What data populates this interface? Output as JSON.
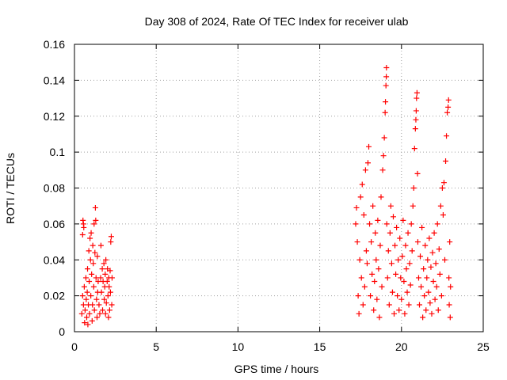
{
  "chart_data": {
    "type": "scatter",
    "title": "Day 308 of 2024, Rate Of TEC Index for receiver ulab",
    "xlabel": "GPS time / hours",
    "ylabel": "ROTI / TECUs",
    "xlim": [
      0,
      25
    ],
    "ylim": [
      0,
      0.16
    ],
    "x_ticks": [
      "0",
      "5",
      "10",
      "15",
      "20",
      "25"
    ],
    "y_ticks": [
      "0",
      "0.02",
      "0.04",
      "0.06",
      "0.08",
      "0.1",
      "0.12",
      "0.14",
      "0.16"
    ],
    "x_tick_values": [
      0,
      5,
      10,
      15,
      20,
      25
    ],
    "y_tick_values": [
      0,
      0.02,
      0.04,
      0.06,
      0.08,
      0.1,
      0.12,
      0.14,
      0.16
    ],
    "grid": true,
    "marker": "plus",
    "color": "#ff0000",
    "series": [
      {
        "points": [
          [
            0.45,
            0.01
          ],
          [
            0.5,
            0.054
          ],
          [
            0.52,
            0.062
          ],
          [
            0.55,
            0.06
          ],
          [
            0.57,
            0.058
          ],
          [
            0.5,
            0.02
          ],
          [
            0.55,
            0.015
          ],
          [
            0.6,
            0.025
          ],
          [
            0.62,
            0.005
          ],
          [
            0.65,
            0.012
          ],
          [
            0.7,
            0.03
          ],
          [
            0.72,
            0.018
          ],
          [
            0.75,
            0.008
          ],
          [
            0.78,
            0.022
          ],
          [
            0.8,
            0.035
          ],
          [
            0.82,
            0.004
          ],
          [
            0.85,
            0.015
          ],
          [
            0.88,
            0.045
          ],
          [
            0.9,
            0.028
          ],
          [
            0.92,
            0.01
          ],
          [
            0.95,
            0.052
          ],
          [
            0.98,
            0.04
          ],
          [
            1.0,
            0.02
          ],
          [
            1.02,
            0.055
          ],
          [
            1.05,
            0.032
          ],
          [
            1.08,
            0.006
          ],
          [
            1.1,
            0.015
          ],
          [
            1.12,
            0.048
          ],
          [
            1.15,
            0.038
          ],
          [
            1.18,
            0.025
          ],
          [
            1.2,
            0.06
          ],
          [
            1.22,
            0.012
          ],
          [
            1.25,
            0.044
          ],
          [
            1.28,
            0.069
          ],
          [
            1.3,
            0.062
          ],
          [
            1.32,
            0.03
          ],
          [
            1.35,
            0.018
          ],
          [
            1.38,
            0.008
          ],
          [
            1.4,
            0.042
          ],
          [
            1.42,
            0.022
          ],
          [
            1.45,
            0.028
          ],
          [
            1.5,
            0.015
          ],
          [
            1.55,
            0.01
          ],
          [
            1.6,
            0.03
          ],
          [
            1.62,
            0.048
          ],
          [
            1.65,
            0.022
          ],
          [
            1.7,
            0.035
          ],
          [
            1.72,
            0.012
          ],
          [
            1.75,
            0.028
          ],
          [
            1.8,
            0.038
          ],
          [
            1.82,
            0.018
          ],
          [
            1.85,
            0.025
          ],
          [
            1.88,
            0.032
          ],
          [
            1.9,
            0.01
          ],
          [
            1.92,
            0.04
          ],
          [
            1.95,
            0.016
          ],
          [
            2.0,
            0.028
          ],
          [
            2.02,
            0.035
          ],
          [
            2.05,
            0.02
          ],
          [
            2.08,
            0.008
          ],
          [
            2.1,
            0.03
          ],
          [
            2.12,
            0.025
          ],
          [
            2.15,
            0.012
          ],
          [
            2.18,
            0.034
          ],
          [
            2.2,
            0.022
          ],
          [
            2.22,
            0.05
          ],
          [
            2.25,
            0.053
          ],
          [
            2.28,
            0.015
          ],
          [
            2.3,
            0.03
          ],
          [
            17.2,
            0.06
          ],
          [
            17.25,
            0.069
          ],
          [
            17.3,
            0.05
          ],
          [
            17.35,
            0.02
          ],
          [
            17.4,
            0.01
          ],
          [
            17.45,
            0.04
          ],
          [
            17.5,
            0.075
          ],
          [
            17.55,
            0.03
          ],
          [
            17.6,
            0.082
          ],
          [
            17.65,
            0.015
          ],
          [
            17.7,
            0.065
          ],
          [
            17.75,
            0.025
          ],
          [
            17.8,
            0.09
          ],
          [
            17.85,
            0.045
          ],
          [
            17.9,
            0.038
          ],
          [
            17.95,
            0.094
          ],
          [
            18.0,
            0.103
          ],
          [
            18.05,
            0.06
          ],
          [
            18.1,
            0.02
          ],
          [
            18.15,
            0.05
          ],
          [
            18.2,
            0.032
          ],
          [
            18.25,
            0.07
          ],
          [
            18.3,
            0.012
          ],
          [
            18.35,
            0.028
          ],
          [
            18.4,
            0.055
          ],
          [
            18.45,
            0.04
          ],
          [
            18.5,
            0.018
          ],
          [
            18.55,
            0.062
          ],
          [
            18.6,
            0.035
          ],
          [
            18.65,
            0.008
          ],
          [
            18.7,
            0.048
          ],
          [
            18.75,
            0.075
          ],
          [
            18.8,
            0.025
          ],
          [
            18.85,
            0.09
          ],
          [
            18.9,
            0.098
          ],
          [
            18.95,
            0.108
          ],
          [
            19.0,
            0.122
          ],
          [
            19.02,
            0.128
          ],
          [
            19.05,
            0.137
          ],
          [
            19.07,
            0.142
          ],
          [
            19.08,
            0.147
          ],
          [
            19.1,
            0.06
          ],
          [
            19.15,
            0.03
          ],
          [
            19.2,
            0.045
          ],
          [
            19.25,
            0.015
          ],
          [
            19.3,
            0.055
          ],
          [
            19.35,
            0.07
          ],
          [
            19.4,
            0.038
          ],
          [
            19.45,
            0.022
          ],
          [
            19.5,
            0.064
          ],
          [
            19.55,
            0.01
          ],
          [
            19.6,
            0.048
          ],
          [
            19.65,
            0.032
          ],
          [
            19.7,
            0.058
          ],
          [
            19.75,
            0.02
          ],
          [
            19.8,
            0.04
          ],
          [
            19.85,
            0.012
          ],
          [
            19.9,
            0.052
          ],
          [
            19.95,
            0.03
          ],
          [
            20.0,
            0.018
          ],
          [
            20.05,
            0.042
          ],
          [
            20.1,
            0.062
          ],
          [
            20.15,
            0.028
          ],
          [
            20.2,
            0.01
          ],
          [
            20.25,
            0.048
          ],
          [
            20.3,
            0.035
          ],
          [
            20.35,
            0.022
          ],
          [
            20.4,
            0.055
          ],
          [
            20.45,
            0.015
          ],
          [
            20.5,
            0.038
          ],
          [
            20.55,
            0.026
          ],
          [
            20.6,
            0.06
          ],
          [
            20.65,
            0.045
          ],
          [
            20.7,
            0.07
          ],
          [
            20.75,
            0.08
          ],
          [
            20.8,
            0.102
          ],
          [
            20.85,
            0.113
          ],
          [
            20.88,
            0.118
          ],
          [
            20.9,
            0.123
          ],
          [
            20.92,
            0.13
          ],
          [
            20.95,
            0.133
          ],
          [
            20.98,
            0.088
          ],
          [
            21.0,
            0.05
          ],
          [
            21.05,
            0.03
          ],
          [
            21.1,
            0.015
          ],
          [
            21.15,
            0.042
          ],
          [
            21.2,
            0.025
          ],
          [
            21.25,
            0.058
          ],
          [
            21.3,
            0.008
          ],
          [
            21.35,
            0.035
          ],
          [
            21.4,
            0.02
          ],
          [
            21.45,
            0.048
          ],
          [
            21.5,
            0.012
          ],
          [
            21.55,
            0.03
          ],
          [
            21.6,
            0.04
          ],
          [
            21.65,
            0.022
          ],
          [
            21.7,
            0.052
          ],
          [
            21.75,
            0.016
          ],
          [
            21.8,
            0.036
          ],
          [
            21.85,
            0.01
          ],
          [
            21.9,
            0.044
          ],
          [
            21.95,
            0.028
          ],
          [
            22.0,
            0.055
          ],
          [
            22.05,
            0.018
          ],
          [
            22.1,
            0.038
          ],
          [
            22.15,
            0.025
          ],
          [
            22.2,
            0.06
          ],
          [
            22.25,
            0.012
          ],
          [
            22.3,
            0.046
          ],
          [
            22.35,
            0.032
          ],
          [
            22.4,
            0.07
          ],
          [
            22.45,
            0.02
          ],
          [
            22.5,
            0.08
          ],
          [
            22.55,
            0.065
          ],
          [
            22.6,
            0.083
          ],
          [
            22.65,
            0.04
          ],
          [
            22.7,
            0.095
          ],
          [
            22.75,
            0.109
          ],
          [
            22.8,
            0.122
          ],
          [
            22.85,
            0.125
          ],
          [
            22.88,
            0.129
          ],
          [
            22.9,
            0.03
          ],
          [
            22.92,
            0.015
          ],
          [
            22.95,
            0.05
          ],
          [
            22.98,
            0.008
          ],
          [
            23.0,
            0.025
          ]
        ]
      }
    ]
  }
}
